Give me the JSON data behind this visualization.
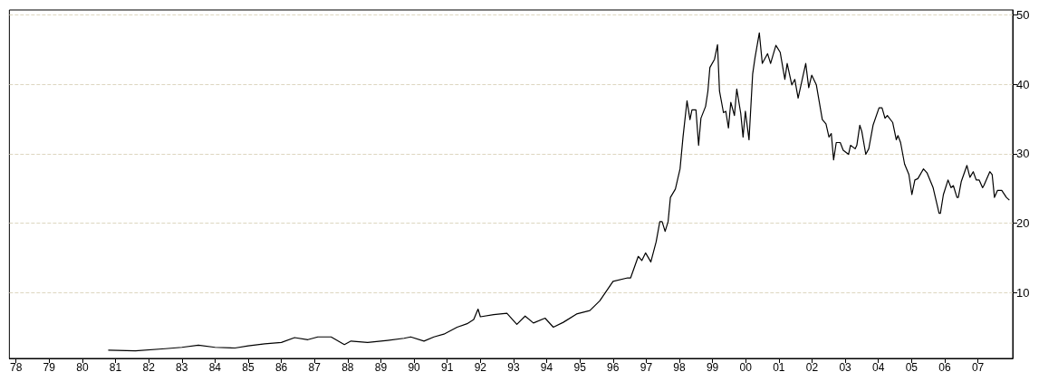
{
  "chart_data": {
    "type": "line",
    "grid": "y",
    "marker": "none",
    "line_style": "solid",
    "xlim": [
      1977.8,
      2008.05
    ],
    "xticks": [
      {
        "value": 1978,
        "label": "78"
      },
      {
        "value": 1979,
        "label": "79"
      },
      {
        "value": 1980,
        "label": "80"
      },
      {
        "value": 1981,
        "label": "81"
      },
      {
        "value": 1982,
        "label": "82"
      },
      {
        "value": 1983,
        "label": "83"
      },
      {
        "value": 1984,
        "label": "84"
      },
      {
        "value": 1985,
        "label": "85"
      },
      {
        "value": 1986,
        "label": "86"
      },
      {
        "value": 1987,
        "label": "87"
      },
      {
        "value": 1988,
        "label": "88"
      },
      {
        "value": 1989,
        "label": "89"
      },
      {
        "value": 1990,
        "label": "90"
      },
      {
        "value": 1991,
        "label": "91"
      },
      {
        "value": 1992,
        "label": "92"
      },
      {
        "value": 1993,
        "label": "93"
      },
      {
        "value": 1994,
        "label": "94"
      },
      {
        "value": 1995,
        "label": "95"
      },
      {
        "value": 1996,
        "label": "96"
      },
      {
        "value": 1997,
        "label": "97"
      },
      {
        "value": 1998,
        "label": "98"
      },
      {
        "value": 1999,
        "label": "99"
      },
      {
        "value": 2000,
        "label": "00"
      },
      {
        "value": 2001,
        "label": "01"
      },
      {
        "value": 2002,
        "label": "02"
      },
      {
        "value": 2003,
        "label": "03"
      },
      {
        "value": 2004,
        "label": "04"
      },
      {
        "value": 2005,
        "label": "05"
      },
      {
        "value": 2006,
        "label": "06"
      },
      {
        "value": 2007,
        "label": "07"
      }
    ],
    "ylim": [
      0.5,
      50.7
    ],
    "yticks": [
      10,
      20,
      30,
      40,
      50
    ],
    "series": [
      {
        "color": "#000000",
        "x": [
          1980.78,
          1981.6,
          1982.5,
          1983,
          1983.5,
          1984,
          1984.6,
          1985,
          1985.5,
          1986,
          1986.4,
          1986.8,
          1987.1,
          1987.5,
          1987.9,
          1988.1,
          1988.6,
          1989.2,
          1989.7,
          1989.9,
          1990.3,
          1990.6,
          1990.9,
          1991.3,
          1991.6,
          1991.8,
          1991.93,
          1992,
          1992.4,
          1992.8,
          1993.1,
          1993.35,
          1993.6,
          1993.95,
          1994.2,
          1994.5,
          1994.9,
          1995.3,
          1995.6,
          1996,
          1996.44,
          1996.53,
          1996.76,
          1996.87,
          1996.98,
          1997.14,
          1997.3,
          1997.41,
          1997.48,
          1997.57,
          1997.66,
          1997.73,
          1997.88,
          1998.02,
          1998.11,
          1998.23,
          1998.32,
          1998.38,
          1998.5,
          1998.58,
          1998.65,
          1998.79,
          1998.86,
          1998.92,
          1999.06,
          1999.15,
          1999.21,
          1999.33,
          1999.4,
          1999.48,
          1999.55,
          1999.66,
          1999.73,
          1999.85,
          1999.92,
          1999.99,
          2000.1,
          2000.21,
          2000.28,
          2000.41,
          2000.5,
          2000.66,
          2000.75,
          2000.91,
          2001.04,
          2001.18,
          2001.25,
          2001.39,
          2001.48,
          2001.58,
          2001.81,
          2001.9,
          2001.99,
          2002.13,
          2002.31,
          2002.42,
          2002.51,
          2002.58,
          2002.65,
          2002.73,
          2002.85,
          2002.94,
          2003.1,
          2003.16,
          2003.3,
          2003.35,
          2003.44,
          2003.5,
          2003.62,
          2003.71,
          2003.84,
          2004.02,
          2004.11,
          2004.2,
          2004.27,
          2004.43,
          2004.54,
          2004.59,
          2004.67,
          2004.79,
          2004.92,
          2005.01,
          2005.1,
          2005.19,
          2005.36,
          2005.47,
          2005.65,
          2005.83,
          2005.87,
          2005.96,
          2006.1,
          2006.19,
          2006.26,
          2006.37,
          2006.41,
          2006.5,
          2006.67,
          2006.76,
          2006.86,
          2006.95,
          2007.04,
          2007.14,
          2007.18,
          2007.36,
          2007.43,
          2007.5,
          2007.59,
          2007.72,
          2007.86,
          2007.95
        ],
        "values": [
          1.7,
          1.6,
          1.9,
          2.1,
          2.4,
          2.1,
          2.0,
          2.3,
          2.6,
          2.8,
          3.5,
          3.2,
          3.6,
          3.6,
          2.5,
          3.0,
          2.8,
          3.1,
          3.4,
          3.6,
          3.0,
          3.6,
          4.0,
          5.0,
          5.5,
          6.1,
          7.6,
          6.5,
          6.8,
          7.0,
          5.4,
          6.6,
          5.6,
          6.3,
          5.0,
          5.7,
          6.9,
          7.4,
          8.8,
          11.6,
          12.1,
          12.1,
          15.2,
          14.6,
          15.7,
          14.4,
          17.3,
          20.2,
          20.2,
          18.8,
          20.2,
          23.7,
          24.9,
          27.8,
          32.4,
          37.6,
          34.9,
          36.3,
          36.3,
          31.2,
          35.1,
          36.8,
          39.0,
          42.4,
          43.6,
          45.7,
          39.0,
          35.9,
          36.1,
          33.7,
          37.4,
          35.5,
          39.3,
          35.8,
          32.4,
          36.1,
          32.0,
          41.5,
          43.8,
          47.4,
          43.0,
          44.4,
          43.0,
          45.6,
          44.6,
          40.7,
          43.0,
          39.9,
          40.7,
          38.0,
          43.0,
          39.5,
          41.3,
          39.9,
          34.9,
          34.3,
          32.4,
          32.9,
          29.1,
          31.6,
          31.6,
          30.5,
          29.9,
          31.2,
          30.7,
          31.2,
          34.1,
          33.2,
          29.9,
          30.7,
          34.1,
          36.6,
          36.6,
          35.1,
          35.5,
          34.5,
          32.0,
          32.6,
          31.6,
          28.5,
          27.0,
          24.1,
          26.2,
          26.4,
          27.8,
          27.2,
          25.1,
          21.4,
          21.4,
          24.1,
          26.2,
          25.1,
          25.4,
          23.7,
          23.7,
          26.0,
          28.3,
          26.6,
          27.4,
          26.2,
          26.2,
          25.1,
          25.4,
          27.4,
          27.0,
          23.7,
          24.7,
          24.7,
          23.7,
          23.3
        ]
      }
    ]
  }
}
